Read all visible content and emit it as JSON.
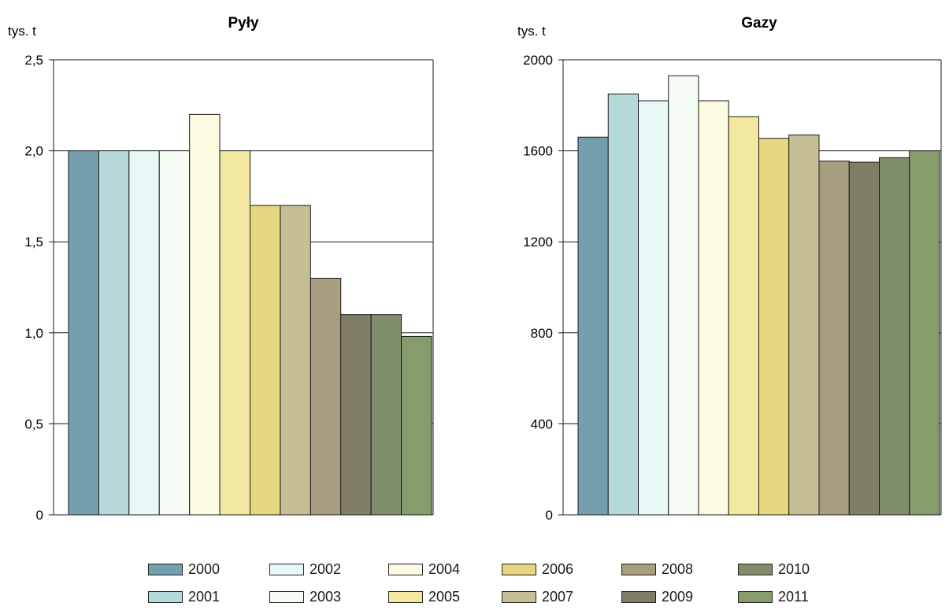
{
  "chart_data": [
    {
      "type": "bar",
      "title": "Pyły",
      "unit": "tys. t",
      "ylim": [
        0,
        2.5
      ],
      "yticks": [
        "0",
        "0,5",
        "1,0",
        "1,5",
        "2,0",
        "2,5"
      ],
      "ytick_values": [
        0,
        0.5,
        1.0,
        1.5,
        2.0,
        2.5
      ],
      "grid": true,
      "categories": [
        "2000",
        "2001",
        "2002",
        "2003",
        "2004",
        "2005",
        "2006",
        "2007",
        "2008",
        "2009",
        "2010",
        "2011"
      ],
      "values": [
        2.0,
        2.0,
        2.0,
        2.0,
        2.2,
        2.0,
        1.7,
        1.7,
        1.3,
        1.1,
        1.1,
        0.98
      ]
    },
    {
      "type": "bar",
      "title": "Gazy",
      "unit": "tys. t",
      "ylim": [
        0,
        2000
      ],
      "yticks": [
        "0",
        "400",
        "800",
        "1200",
        "1600",
        "2000"
      ],
      "ytick_values": [
        0,
        400,
        800,
        1200,
        1600,
        2000
      ],
      "grid": true,
      "categories": [
        "2000",
        "2001",
        "2002",
        "2003",
        "2004",
        "2005",
        "2006",
        "2007",
        "2008",
        "2009",
        "2010",
        "2011"
      ],
      "values": [
        1660,
        1850,
        1820,
        1930,
        1820,
        1750,
        1655,
        1670,
        1555,
        1550,
        1570,
        1600
      ]
    }
  ],
  "legend": {
    "placement": "bottom",
    "items": [
      {
        "label": "2000",
        "color": "#769fae"
      },
      {
        "label": "2001",
        "color": "#b6d9da"
      },
      {
        "label": "2002",
        "color": "#e7f8f6"
      },
      {
        "label": "2003",
        "color": "#f5fcf4"
      },
      {
        "label": "2004",
        "color": "#fdfae2"
      },
      {
        "label": "2005",
        "color": "#f3e8a0"
      },
      {
        "label": "2006",
        "color": "#e5d780"
      },
      {
        "label": "2007",
        "color": "#c6bf95"
      },
      {
        "label": "2008",
        "color": "#a69e7e"
      },
      {
        "label": "2009",
        "color": "#817e68"
      },
      {
        "label": "2010",
        "color": "#7f8d6d"
      },
      {
        "label": "2011",
        "color": "#869d6b"
      }
    ]
  }
}
